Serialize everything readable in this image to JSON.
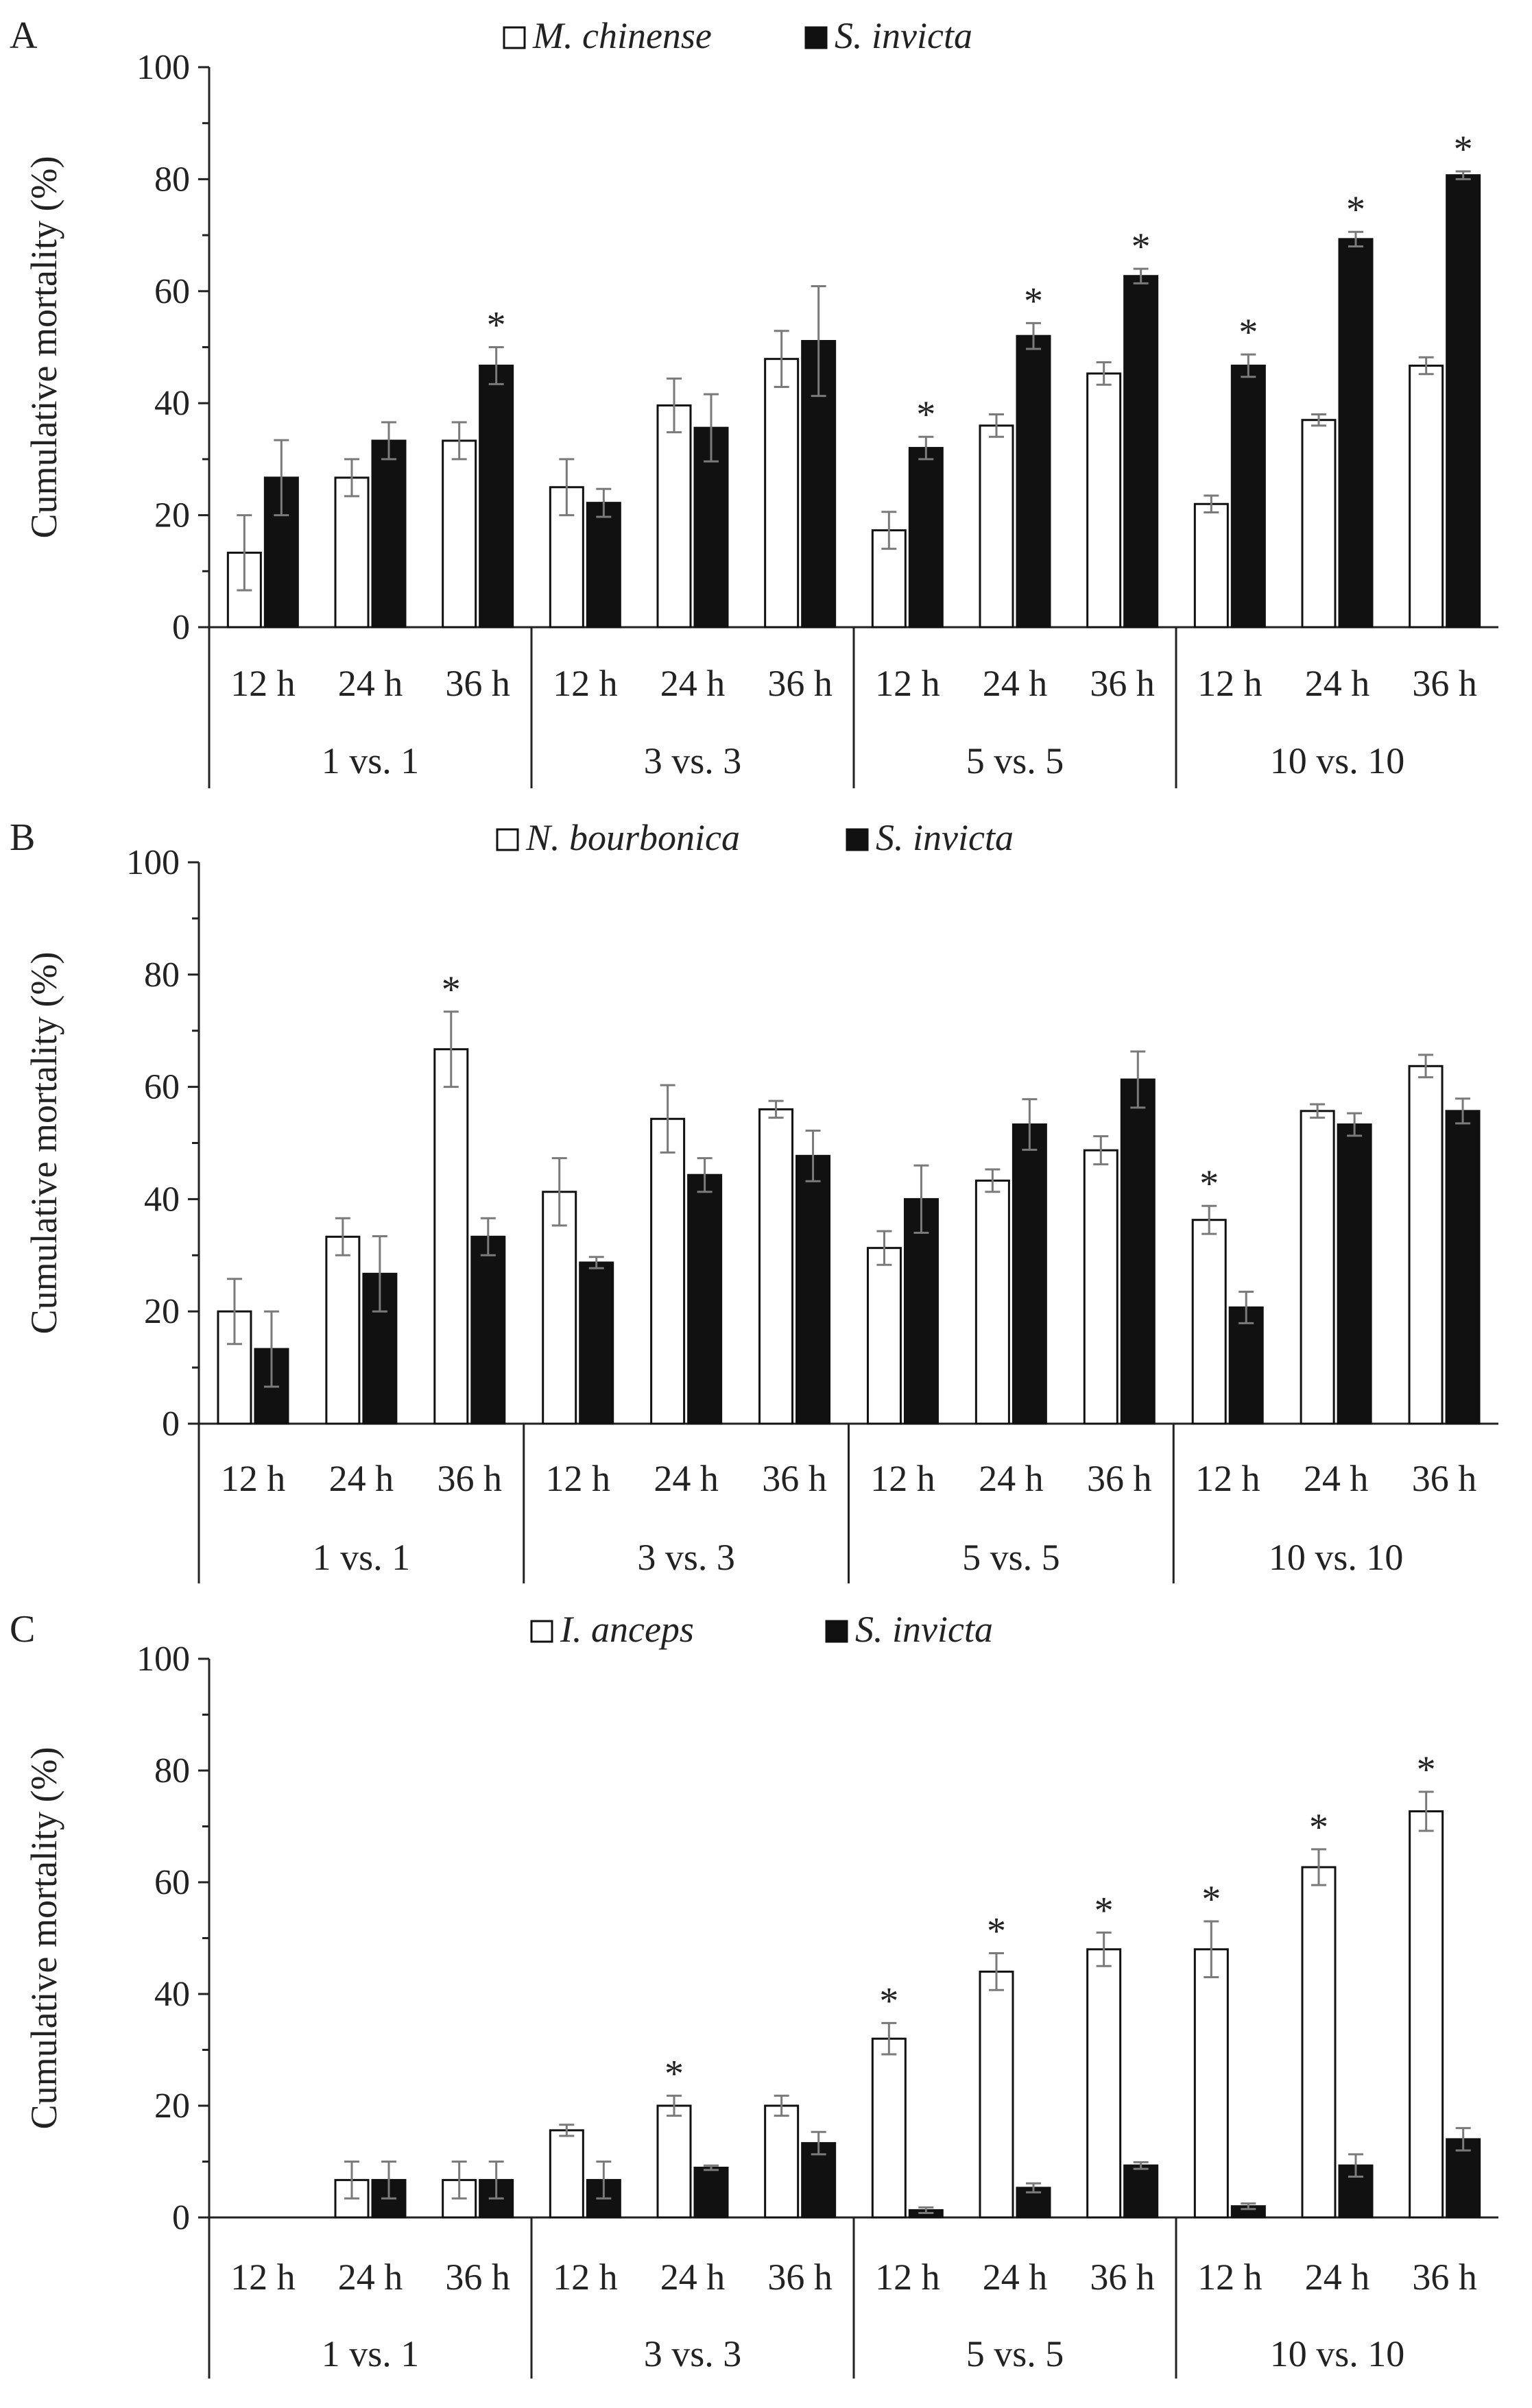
{
  "chart_data": [
    {
      "type": "bar",
      "panel_label": "A",
      "title": "",
      "ylabel": "Cumulative mortality (%)",
      "xlabel": "",
      "ylim": [
        0,
        100
      ],
      "yticks": [
        "0",
        "20",
        "40",
        "60",
        "80",
        "100"
      ],
      "groups": [
        "1 vs. 1",
        "3 vs. 3",
        "5 vs. 5",
        "10 vs. 10"
      ],
      "times": [
        "12 h",
        "24 h",
        "36 h"
      ],
      "legend_position": "top-center",
      "series": [
        {
          "name": "M. chinense",
          "fill": "open",
          "values": [
            13.3,
            26.7,
            33.3,
            25.0,
            39.6,
            47.9,
            17.3,
            36.0,
            45.3,
            22.0,
            37.0,
            46.7
          ],
          "errors": [
            6.7,
            3.3,
            3.3,
            5.0,
            4.8,
            5.0,
            3.3,
            2.0,
            2.0,
            1.5,
            1.0,
            1.5
          ]
        },
        {
          "name": "S. invicta",
          "fill": "solid",
          "values": [
            26.7,
            33.3,
            46.7,
            22.2,
            35.6,
            51.1,
            32.0,
            52.0,
            62.7,
            46.7,
            69.3,
            80.7
          ],
          "errors": [
            6.7,
            3.3,
            3.3,
            2.5,
            6.0,
            9.8,
            2.0,
            2.3,
            1.3,
            2.0,
            1.3,
            0.7
          ]
        }
      ],
      "significance": [
        {
          "category_index": 2,
          "symbol": "*"
        },
        {
          "category_index": 6,
          "symbol": "*"
        },
        {
          "category_index": 7,
          "symbol": "*"
        },
        {
          "category_index": 8,
          "symbol": "*"
        },
        {
          "category_index": 9,
          "symbol": "*"
        },
        {
          "category_index": 10,
          "symbol": "*"
        },
        {
          "category_index": 11,
          "symbol": "*"
        }
      ]
    },
    {
      "type": "bar",
      "panel_label": "B",
      "title": "",
      "ylabel": "Cumulative mortality (%)",
      "xlabel": "",
      "ylim": [
        0,
        100
      ],
      "yticks": [
        "0",
        "20",
        "40",
        "60",
        "80",
        "100"
      ],
      "groups": [
        "1 vs. 1",
        "3 vs. 3",
        "5 vs. 5",
        "10 vs. 10"
      ],
      "times": [
        "12 h",
        "24 h",
        "36 h"
      ],
      "legend_position": "top-center",
      "series": [
        {
          "name": "N. bourbonica",
          "fill": "open",
          "values": [
            20.0,
            33.3,
            66.7,
            41.3,
            54.3,
            56.0,
            31.3,
            43.3,
            48.7,
            36.3,
            55.7,
            63.7
          ],
          "errors": [
            5.8,
            3.3,
            6.7,
            6.0,
            6.0,
            1.5,
            3.0,
            2.0,
            2.5,
            2.5,
            1.2,
            2.0
          ]
        },
        {
          "name": "S. invicta",
          "fill": "solid",
          "values": [
            13.3,
            26.7,
            33.3,
            28.7,
            44.3,
            47.7,
            40.0,
            53.3,
            61.3,
            20.7,
            53.3,
            55.7
          ],
          "errors": [
            6.7,
            6.7,
            3.3,
            1.0,
            3.0,
            4.5,
            6.0,
            4.5,
            5.0,
            2.8,
            2.0,
            2.2
          ]
        }
      ],
      "significance": [
        {
          "category_index": 2,
          "symbol": "*"
        },
        {
          "category_index": 9,
          "symbol": "*"
        }
      ]
    },
    {
      "type": "bar",
      "panel_label": "C",
      "title": "",
      "ylabel": "Cumulative mortality (%)",
      "xlabel": "",
      "ylim": [
        0,
        100
      ],
      "yticks": [
        "0",
        "20",
        "40",
        "60",
        "80",
        "100"
      ],
      "groups": [
        "1 vs. 1",
        "3 vs. 3",
        "5 vs. 5",
        "10 vs. 10"
      ],
      "times": [
        "12 h",
        "24 h",
        "36 h"
      ],
      "legend_position": "top-center",
      "series": [
        {
          "name": "I. anceps",
          "fill": "open",
          "values": [
            0,
            6.7,
            6.7,
            15.6,
            20.0,
            20.0,
            32.0,
            44.0,
            48.0,
            48.0,
            62.7,
            72.7
          ],
          "errors": [
            0,
            3.3,
            3.3,
            1.0,
            1.8,
            1.8,
            2.8,
            3.3,
            3.0,
            5.0,
            3.2,
            3.5
          ]
        },
        {
          "name": "S. invicta",
          "fill": "solid",
          "values": [
            0,
            6.7,
            6.7,
            6.7,
            8.9,
            13.3,
            1.3,
            5.3,
            9.3,
            2.0,
            9.3,
            14.0
          ],
          "errors": [
            0,
            3.3,
            3.3,
            3.3,
            0.4,
            2.0,
            0.5,
            0.8,
            0.6,
            0.5,
            2.0,
            2.0
          ]
        }
      ],
      "significance": [
        {
          "category_index": 4,
          "symbol": "*"
        },
        {
          "category_index": 6,
          "symbol": "*"
        },
        {
          "category_index": 7,
          "symbol": "*"
        },
        {
          "category_index": 8,
          "symbol": "*"
        },
        {
          "category_index": 9,
          "symbol": "*"
        },
        {
          "category_index": 10,
          "symbol": "*"
        },
        {
          "category_index": 11,
          "symbol": "*"
        }
      ]
    }
  ]
}
